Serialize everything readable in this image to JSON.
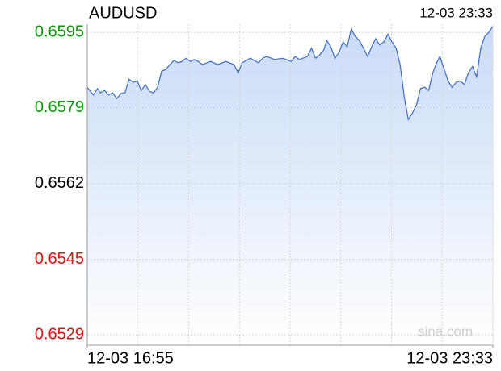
{
  "chart_data": {
    "type": "area",
    "title": "AUDUSD",
    "timestamp": "12-03 23:33",
    "watermark": "sina.com",
    "x": [
      0,
      6,
      10,
      13,
      17,
      21,
      25,
      29,
      33,
      37,
      41,
      45,
      49,
      53,
      57,
      61,
      65,
      69,
      73,
      77,
      81,
      85,
      89,
      93,
      97,
      101,
      105,
      109,
      113,
      121,
      128,
      136,
      144,
      148,
      152,
      156,
      160,
      168,
      172,
      176,
      184,
      192,
      200,
      204,
      208,
      216,
      220,
      224,
      228,
      232,
      235,
      239,
      243,
      247,
      251,
      255,
      259,
      263,
      267,
      271,
      275,
      279,
      283,
      287,
      291,
      295,
      299,
      303,
      307,
      311,
      315,
      319,
      323,
      327,
      331,
      335,
      339,
      342,
      346,
      350,
      354,
      358,
      362,
      366,
      370,
      374,
      378,
      382,
      386,
      390,
      394,
      398
    ],
    "series": [
      {
        "name": "AUDUSD",
        "color": "#3a6bc4",
        "values": [
          0.65832,
          0.65815,
          0.65829,
          0.6582,
          0.65825,
          0.65815,
          0.6582,
          0.65807,
          0.65818,
          0.6582,
          0.6585,
          0.65843,
          0.65846,
          0.65825,
          0.65838,
          0.65823,
          0.6582,
          0.65832,
          0.65868,
          0.65871,
          0.65882,
          0.65891,
          0.65886,
          0.65889,
          0.65896,
          0.65889,
          0.65893,
          0.65889,
          0.65882,
          0.65889,
          0.65882,
          0.65889,
          0.65882,
          0.65864,
          0.65886,
          0.65891,
          0.65896,
          0.65886,
          0.65896,
          0.659,
          0.65893,
          0.65896,
          0.65889,
          0.659,
          0.65893,
          0.659,
          0.65918,
          0.65896,
          0.65903,
          0.65914,
          0.65935,
          0.65921,
          0.65896,
          0.65909,
          0.65932,
          0.65921,
          0.6596,
          0.65944,
          0.65935,
          0.65918,
          0.659,
          0.65921,
          0.65939,
          0.65925,
          0.65932,
          0.65949,
          0.65932,
          0.65918,
          0.65882,
          0.65811,
          0.65761,
          0.65775,
          0.65793,
          0.65829,
          0.65832,
          0.65825,
          0.65864,
          0.65882,
          0.659,
          0.65873,
          0.65846,
          0.65832,
          0.65843,
          0.65846,
          0.65838,
          0.65864,
          0.65878,
          0.65855,
          0.65918,
          0.65944,
          0.65953,
          0.65967
        ]
      }
    ],
    "xlim": [
      0,
      398
    ],
    "xticks": [
      {
        "value": 0,
        "label": "12-03 16:55"
      },
      {
        "value": 398,
        "label": "12-03 23:33"
      }
    ],
    "xgrid_divisions": 8,
    "ylim": [
      0.65264,
      0.65971
    ],
    "yticks": [
      {
        "value": 0.65953,
        "label": "0.6595"
      },
      {
        "value": 0.65787,
        "label": "0.6579"
      },
      {
        "value": 0.6562,
        "label": "0.6562"
      },
      {
        "value": 0.65453,
        "label": "0.6545"
      },
      {
        "value": 0.65287,
        "label": "0.6529"
      }
    ],
    "ytick_colors": [
      "#0a9a0a",
      "#0a9a0a",
      "#000000",
      "#e01010",
      "#e01010"
    ],
    "grid": true
  }
}
